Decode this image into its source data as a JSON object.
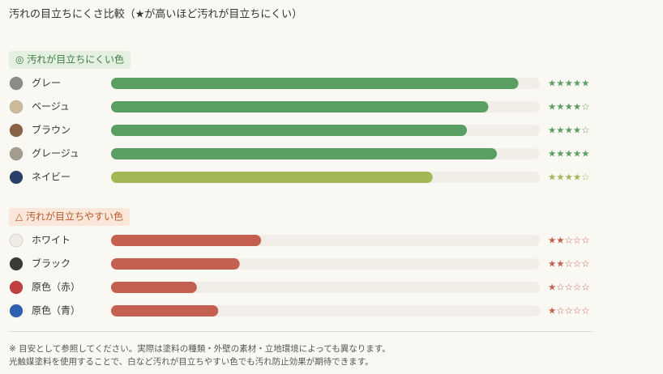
{
  "chart_data": {
    "type": "bar",
    "title": "汚れの目立ちにくさ比較（★が高いほど汚れが目立ちにくい）",
    "xlim": [
      0,
      100
    ],
    "track_color": "#f0eee6",
    "groups": [
      {
        "label": "◎ 汚れが目立ちにくい色",
        "label_color": "#3f7a45",
        "label_bg": "#e4f0e0",
        "items": [
          {
            "name": "グレー",
            "swatch": "#8c8b87",
            "value": 95,
            "stars": "★★★★★",
            "color": "#5a9e62"
          },
          {
            "name": "ベージュ",
            "swatch": "#cbbb99",
            "value": 88,
            "stars": "★★★★☆",
            "color": "#5a9e62"
          },
          {
            "name": "ブラウン",
            "swatch": "#8a6246",
            "value": 83,
            "stars": "★★★★☆",
            "color": "#5a9e62"
          },
          {
            "name": "グレージュ",
            "swatch": "#a59c90",
            "value": 90,
            "stars": "★★★★★",
            "color": "#5a9e62"
          },
          {
            "name": "ネイビー",
            "swatch": "#2b416a",
            "value": 75,
            "stars": "★★★★☆",
            "color": "#a2b755"
          }
        ]
      },
      {
        "label": "△ 汚れが目立ちやすい色",
        "label_color": "#b65a2a",
        "label_bg": "#fbe7da",
        "items": [
          {
            "name": "ホワイト",
            "swatch": "#efece5",
            "value": 35,
            "stars": "★★☆☆☆",
            "color": "#c4604f"
          },
          {
            "name": "ブラック",
            "swatch": "#3a3a36",
            "value": 30,
            "stars": "★★☆☆☆",
            "color": "#c4604f"
          },
          {
            "name": "原色（赤）",
            "swatch": "#c03f3f",
            "value": 20,
            "stars": "★☆☆☆☆",
            "color": "#c4604f"
          },
          {
            "name": "原色（青）",
            "swatch": "#2f5fb0",
            "value": 25,
            "stars": "★☆☆☆☆",
            "color": "#c4604f"
          }
        ]
      }
    ],
    "notes": [
      "※ 目安として参照してください。実際は塗料の種類・外壁の素材・立地環境によっても異なります。",
      "光触媒塗料を使用することで、白など汚れが目立ちやすい色でも汚れ防止効果が期待できます。"
    ]
  }
}
